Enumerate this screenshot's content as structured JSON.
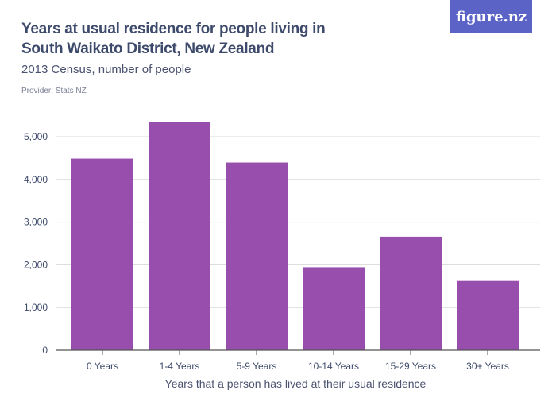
{
  "logo": "figure.nz",
  "chart_data": {
    "type": "bar",
    "title": "Years at usual residence for people living in South Waikato District, New Zealand",
    "subtitle": "2013 Census, number of people",
    "provider": "Provider: Stats NZ",
    "xlabel": "Years that a person has lived at their usual residence",
    "ylabel": "",
    "categories": [
      "0 Years",
      "1-4 Years",
      "5-9 Years",
      "10-14 Years",
      "15-29 Years",
      "30+ Years"
    ],
    "values": [
      4488,
      5340,
      4395,
      1944,
      2660,
      1623
    ],
    "ylim": [
      0,
      5000
    ],
    "yticks": [
      "0",
      "1,000",
      "2,000",
      "3,000",
      "4,000",
      "5,000"
    ],
    "grid": true,
    "color": "#984ead"
  }
}
